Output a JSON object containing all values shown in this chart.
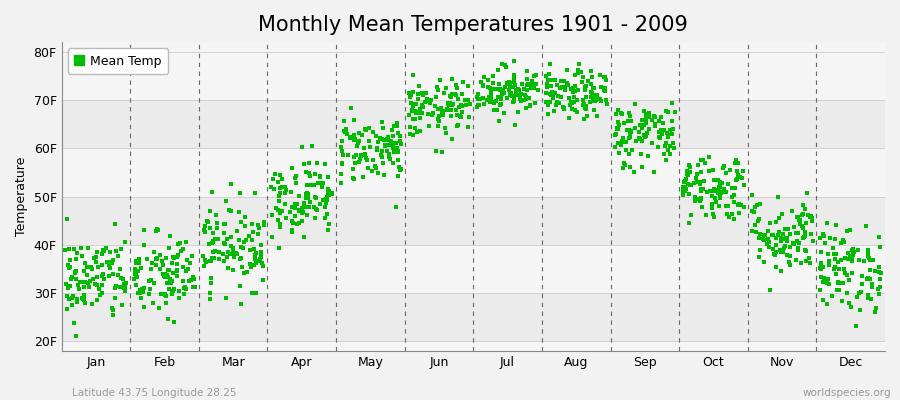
{
  "title": "Monthly Mean Temperatures 1901 - 2009",
  "ylabel": "Temperature",
  "xlabel_bottom_left": "Latitude 43.75 Longitude 28.25",
  "xlabel_bottom_right": "worldspecies.org",
  "legend_label": "Mean Temp",
  "marker_color": "#00bb00",
  "marker_size": 5,
  "background_color": "#f2f2f2",
  "plot_bg_alt1": "#ebebeb",
  "plot_bg_alt2": "#f5f5f5",
  "yticks": [
    20,
    30,
    40,
    50,
    60,
    70,
    80
  ],
  "ytick_labels": [
    "20F",
    "30F",
    "40F",
    "50F",
    "60F",
    "70F",
    "80F"
  ],
  "ylim": [
    18,
    82
  ],
  "months": [
    "Jan",
    "Feb",
    "Mar",
    "Apr",
    "May",
    "Jun",
    "Jul",
    "Aug",
    "Sep",
    "Oct",
    "Nov",
    "Dec"
  ],
  "monthly_mean_F": [
    33.0,
    33.5,
    40.0,
    50.0,
    60.0,
    68.0,
    72.0,
    71.0,
    63.0,
    52.0,
    42.0,
    35.0
  ],
  "monthly_std_F": [
    4.5,
    4.5,
    4.5,
    4.0,
    3.5,
    3.0,
    2.5,
    2.5,
    3.5,
    3.5,
    4.0,
    4.5
  ],
  "n_years": 109,
  "seed": 42,
  "title_fontsize": 15,
  "label_fontsize": 9,
  "tick_fontsize": 9
}
